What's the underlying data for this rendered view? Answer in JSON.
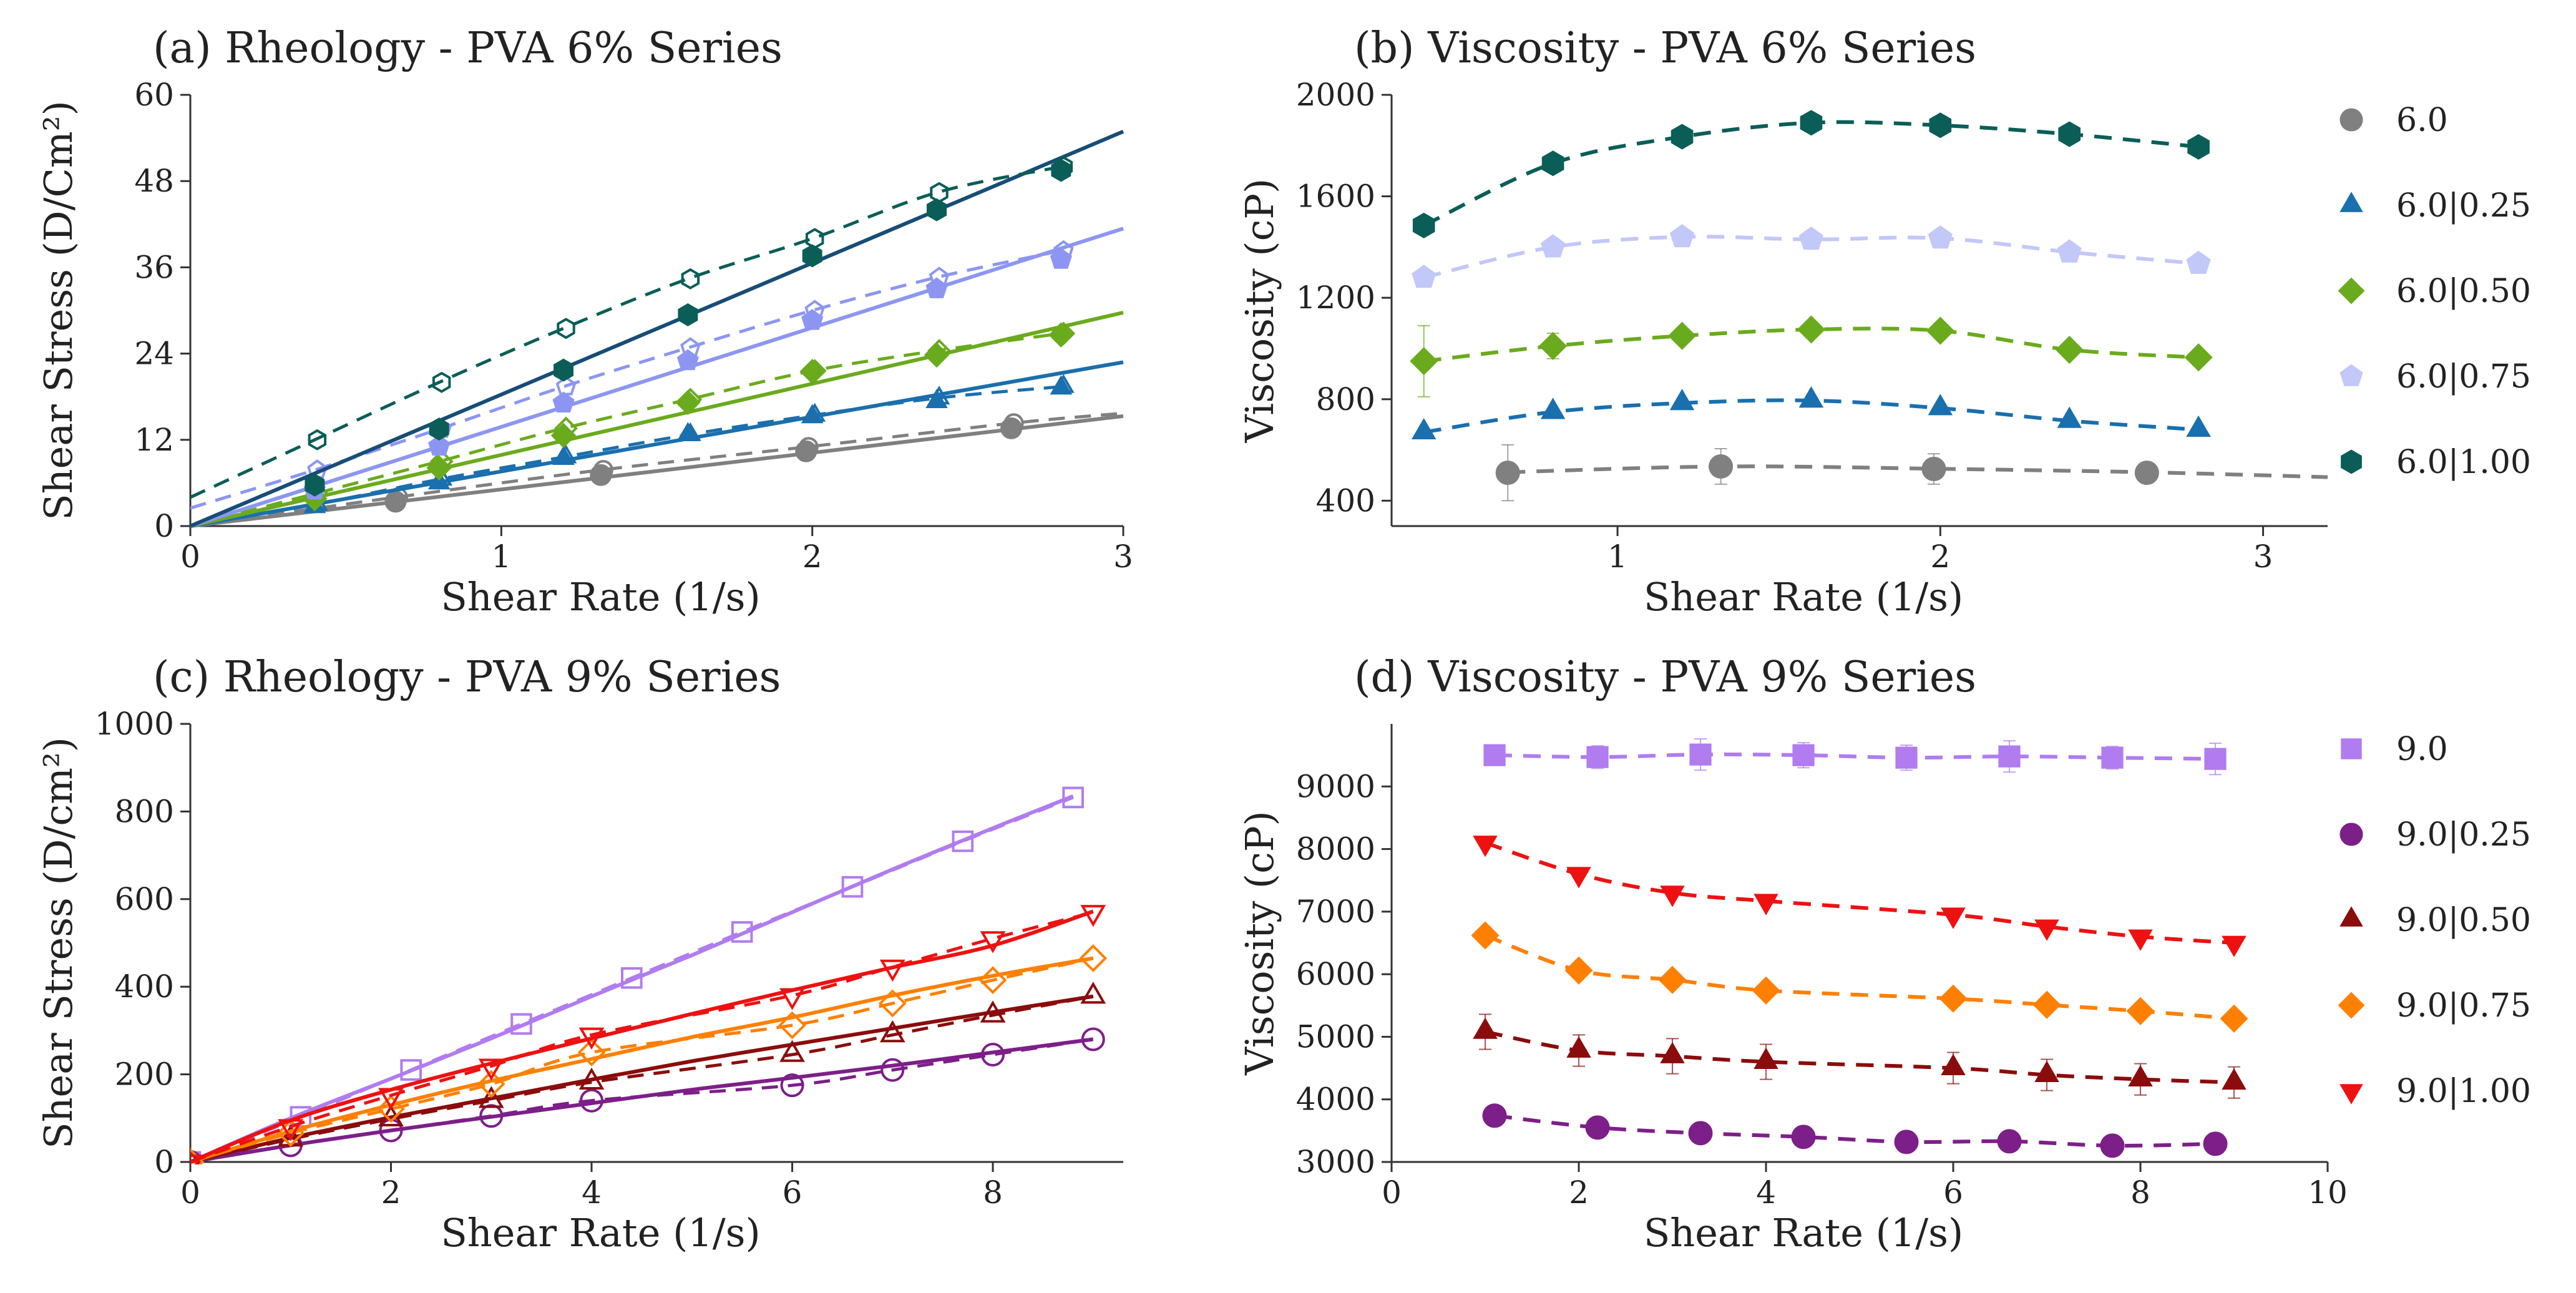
{
  "chart_data": [
    {
      "id": "a",
      "type": "scatter",
      "title": "(a) Rheology - PVA 6% Series",
      "xlabel": "Shear Rate (1/s)",
      "ylabel": "Shear Stress (D/Cm²)",
      "xlim": [
        0,
        3
      ],
      "ylim": [
        0,
        60
      ],
      "xticks": [
        0,
        1,
        2,
        3
      ],
      "yticks": [
        0,
        12,
        24,
        36,
        48,
        60
      ],
      "legend": "none",
      "series": [
        {
          "name": "6.0",
          "color": "#808080",
          "marker": "circle",
          "x": [
            0.66,
            1.32,
            1.98,
            2.64
          ],
          "y": [
            3.4,
            7.1,
            10.4,
            13.6
          ],
          "fit_slope": 5.1,
          "dashed_x": [
            0.0,
            0.66,
            1.32,
            1.98,
            2.64,
            3.0
          ],
          "dashed_y": [
            0.0,
            4.0,
            7.8,
            11.0,
            14.3,
            15.7
          ]
        },
        {
          "name": "6.0|0.25",
          "color": "#1a6fae",
          "marker": "triangle",
          "x": [
            0.4,
            0.8,
            1.2,
            1.6,
            2.0,
            2.4,
            2.8
          ],
          "y": [
            2.7,
            6.0,
            9.4,
            12.7,
            15.2,
            17.3,
            19.2
          ],
          "fit_slope": 7.6,
          "dashed_x": [
            0.0,
            0.4,
            0.8,
            1.2,
            1.6,
            2.0,
            2.4,
            2.8
          ],
          "dashed_y": [
            0.0,
            3.0,
            6.5,
            9.6,
            12.7,
            15.4,
            17.8,
            19.4
          ]
        },
        {
          "name": "6.0|0.50",
          "color": "#6aab1d",
          "marker": "diamond",
          "x": [
            0.4,
            0.8,
            1.2,
            1.6,
            2.0,
            2.4,
            2.8
          ],
          "y": [
            3.8,
            8.1,
            12.6,
            17.2,
            21.5,
            23.8,
            26.6
          ],
          "fit_slope": 9.9,
          "dashed_x": [
            0.0,
            0.4,
            0.8,
            1.2,
            1.6,
            2.0,
            2.4,
            2.8
          ],
          "dashed_y": [
            0.0,
            4.5,
            9.0,
            13.6,
            17.6,
            21.6,
            24.4,
            26.8
          ]
        },
        {
          "name": "6.0|0.75",
          "color": "#8c96f2",
          "marker": "pentagon",
          "x": [
            0.4,
            0.8,
            1.2,
            1.6,
            2.0,
            2.4,
            2.8
          ],
          "y": [
            5.0,
            11.1,
            17.1,
            23.0,
            28.6,
            33.0,
            37.1
          ],
          "fit_slope": 13.8,
          "dashed_x": [
            0.0,
            0.4,
            0.8,
            1.2,
            1.6,
            2.0,
            2.4,
            2.8
          ],
          "dashed_y": [
            2.5,
            7.8,
            13.5,
            19.4,
            24.8,
            30.0,
            34.6,
            38.3
          ]
        },
        {
          "name": "6.0|1.00",
          "color": "#0b5e58",
          "marker": "hexagon",
          "x": [
            0.4,
            0.8,
            1.2,
            1.6,
            2.0,
            2.4,
            2.8
          ],
          "y": [
            5.7,
            13.5,
            21.7,
            29.4,
            37.6,
            44.0,
            49.5
          ],
          "fit_slope": 18.3,
          "fit_color": "#174d77",
          "dashed_x": [
            0.0,
            0.4,
            0.8,
            1.2,
            1.6,
            2.0,
            2.4,
            2.8
          ],
          "dashed_y": [
            4.0,
            12.0,
            20.0,
            27.5,
            34.4,
            40.0,
            46.4,
            50.0
          ]
        }
      ]
    },
    {
      "id": "b",
      "type": "scatter",
      "title": "(b) Viscosity - PVA 6% Series",
      "xlabel": "Shear Rate (1/s)",
      "ylabel": "Viscosity (cP)",
      "xlim": [
        0.3,
        3.2
      ],
      "ylim": [
        300,
        2000
      ],
      "xticks": [
        1,
        2,
        3
      ],
      "yticks": [
        400,
        800,
        1200,
        1600,
        2000
      ],
      "legend": "right",
      "series": [
        {
          "name": "6.0",
          "color": "#808080",
          "marker": "circle",
          "x": [
            0.66,
            1.32,
            1.98,
            2.64
          ],
          "y": [
            510,
            535,
            525,
            510
          ],
          "err": [
            110,
            70,
            60,
            40
          ],
          "curve_x": [
            0.66,
            1.32,
            1.98,
            2.64,
            3.2
          ],
          "curve_y": [
            512,
            535,
            526,
            512,
            493
          ]
        },
        {
          "name": "6.0|0.25",
          "color": "#1a6fae",
          "marker": "triangle",
          "x": [
            0.4,
            0.8,
            1.2,
            1.6,
            2.0,
            2.4,
            2.8
          ],
          "y": [
            670,
            750,
            785,
            795,
            765,
            715,
            680
          ]
        },
        {
          "name": "6.0|0.50",
          "color": "#6aab1d",
          "marker": "diamond",
          "x": [
            0.4,
            0.8,
            1.2,
            1.6,
            2.0,
            2.4,
            2.8
          ],
          "y": [
            950,
            1010,
            1050,
            1075,
            1070,
            995,
            965
          ],
          "err": [
            140,
            50,
            30,
            30,
            30,
            30,
            30
          ]
        },
        {
          "name": "6.0|0.75",
          "color": "#c2c8f8",
          "marker": "pentagon",
          "x": [
            0.4,
            0.8,
            1.2,
            1.6,
            2.0,
            2.4,
            2.8
          ],
          "y": [
            1280,
            1400,
            1440,
            1430,
            1435,
            1380,
            1335
          ]
        },
        {
          "name": "6.0|1.00",
          "color": "#0b5e58",
          "marker": "hexagon",
          "x": [
            0.4,
            0.8,
            1.2,
            1.6,
            2.0,
            2.4,
            2.8
          ],
          "y": [
            1485,
            1730,
            1835,
            1890,
            1880,
            1845,
            1795
          ]
        }
      ]
    },
    {
      "id": "c",
      "type": "scatter",
      "title": "(c) Rheology - PVA 9% Series",
      "xlabel": "Shear Rate (1/s)",
      "ylabel": "Shear Stress (D/cm²)",
      "xlim": [
        0,
        9.3
      ],
      "ylim": [
        0,
        1000
      ],
      "xticks": [
        0,
        2,
        4,
        6,
        8
      ],
      "yticks": [
        0,
        200,
        400,
        600,
        800,
        1000
      ],
      "legend": "none",
      "series": [
        {
          "name": "9.0",
          "color": "#b07cf0",
          "marker": "square",
          "x": [
            0,
            1.1,
            2.2,
            3.3,
            4.4,
            5.5,
            6.6,
            7.7,
            8.8
          ],
          "y": [
            0,
            103,
            210,
            315,
            420,
            525,
            628,
            732,
            832
          ],
          "fit_x": [
            0,
            1,
            2,
            3,
            4,
            5,
            6,
            7,
            8,
            8.8
          ],
          "fit_y": [
            0,
            100,
            190,
            282,
            378,
            472,
            570,
            668,
            762,
            835
          ]
        },
        {
          "name": "9.0|0.25",
          "color": "#7d1f88",
          "marker": "circle",
          "x": [
            0,
            1,
            2,
            3,
            4,
            6,
            7,
            8,
            9
          ],
          "y": [
            0,
            38,
            72,
            105,
            140,
            175,
            210,
            245,
            280
          ],
          "fit_x": [
            0,
            1,
            2,
            3,
            4,
            5,
            6,
            7,
            8,
            9
          ],
          "fit_y": [
            0,
            38,
            72,
            103,
            134,
            165,
            192,
            220,
            250,
            280
          ]
        },
        {
          "name": "9.0|0.50",
          "color": "#8b0c0c",
          "marker": "triangle",
          "x": [
            0,
            1,
            2,
            3,
            4,
            6,
            7,
            8,
            9
          ],
          "y": [
            0,
            52,
            98,
            140,
            182,
            245,
            290,
            335,
            378
          ],
          "fit_x": [
            0,
            1,
            2,
            3,
            4,
            5,
            6,
            7,
            8,
            9
          ],
          "fit_y": [
            0,
            55,
            102,
            145,
            188,
            230,
            268,
            305,
            342,
            378
          ]
        },
        {
          "name": "9.0|0.75",
          "color": "#ff8000",
          "marker": "diamond",
          "x": [
            0,
            1,
            2,
            3,
            4,
            6,
            7,
            8,
            9
          ],
          "y": [
            0,
            66,
            121,
            178,
            250,
            312,
            362,
            415,
            465
          ],
          "fit_x": [
            0,
            1,
            2,
            3,
            4,
            5,
            6,
            7,
            8,
            9
          ],
          "fit_y": [
            0,
            70,
            130,
            185,
            235,
            285,
            330,
            380,
            425,
            465
          ]
        },
        {
          "name": "9.0|1.00",
          "color": "#ee1111",
          "marker": "triangle-down",
          "x": [
            0,
            1,
            2,
            3,
            4,
            6,
            7,
            8,
            9
          ],
          "y": [
            0,
            81,
            152,
            219,
            290,
            380,
            445,
            510,
            570
          ],
          "fit_x": [
            0,
            1,
            2,
            3,
            4,
            5,
            6,
            7,
            8,
            9
          ],
          "fit_y": [
            0,
            95,
            165,
            225,
            282,
            338,
            392,
            444,
            494,
            572
          ]
        }
      ]
    },
    {
      "id": "d",
      "type": "scatter",
      "title": "(d) Viscosity - PVA 9% Series",
      "xlabel": "Shear Rate (1/s)",
      "ylabel": "Viscosity (cP)",
      "xlim": [
        0,
        10
      ],
      "ylim": [
        3000,
        10000
      ],
      "xticks": [
        0,
        2,
        4,
        6,
        8,
        10
      ],
      "yticks": [
        3000,
        4000,
        5000,
        6000,
        7000,
        8000,
        9000
      ],
      "legend": "right",
      "series": [
        {
          "name": "9.0",
          "color": "#b07cf0",
          "marker": "square",
          "x": [
            1.1,
            2.2,
            3.3,
            4.4,
            5.5,
            6.6,
            7.7,
            8.8
          ],
          "y": [
            9500,
            9470,
            9510,
            9500,
            9460,
            9480,
            9460,
            9440
          ],
          "err": [
            100,
            180,
            250,
            200,
            200,
            250,
            180,
            250
          ]
        },
        {
          "name": "9.0|0.25",
          "color": "#7d1f88",
          "marker": "circle",
          "x": [
            1.1,
            2.2,
            3.3,
            4.4,
            5.5,
            6.6,
            7.7,
            8.8
          ],
          "y": [
            3740,
            3550,
            3460,
            3400,
            3320,
            3330,
            3260,
            3290
          ]
        },
        {
          "name": "9.0|0.50",
          "color": "#8b0c0c",
          "marker": "triangle",
          "x": [
            1,
            2,
            3,
            4,
            6,
            7,
            8,
            9
          ],
          "y": [
            5080,
            4780,
            4690,
            4600,
            4500,
            4390,
            4320,
            4270
          ],
          "err": [
            280,
            250,
            280,
            280,
            250,
            250,
            250,
            250
          ]
        },
        {
          "name": "9.0|0.75",
          "color": "#ff8000",
          "marker": "diamond",
          "x": [
            1,
            2,
            3,
            4,
            6,
            7,
            8,
            9
          ],
          "y": [
            6620,
            6060,
            5910,
            5740,
            5610,
            5510,
            5410,
            5290
          ]
        },
        {
          "name": "9.0|1.00",
          "color": "#ee1111",
          "marker": "triangle-down",
          "x": [
            1,
            2,
            3,
            4,
            6,
            7,
            8,
            9
          ],
          "y": [
            8100,
            7600,
            7300,
            7170,
            6950,
            6760,
            6600,
            6500
          ]
        }
      ]
    }
  ]
}
